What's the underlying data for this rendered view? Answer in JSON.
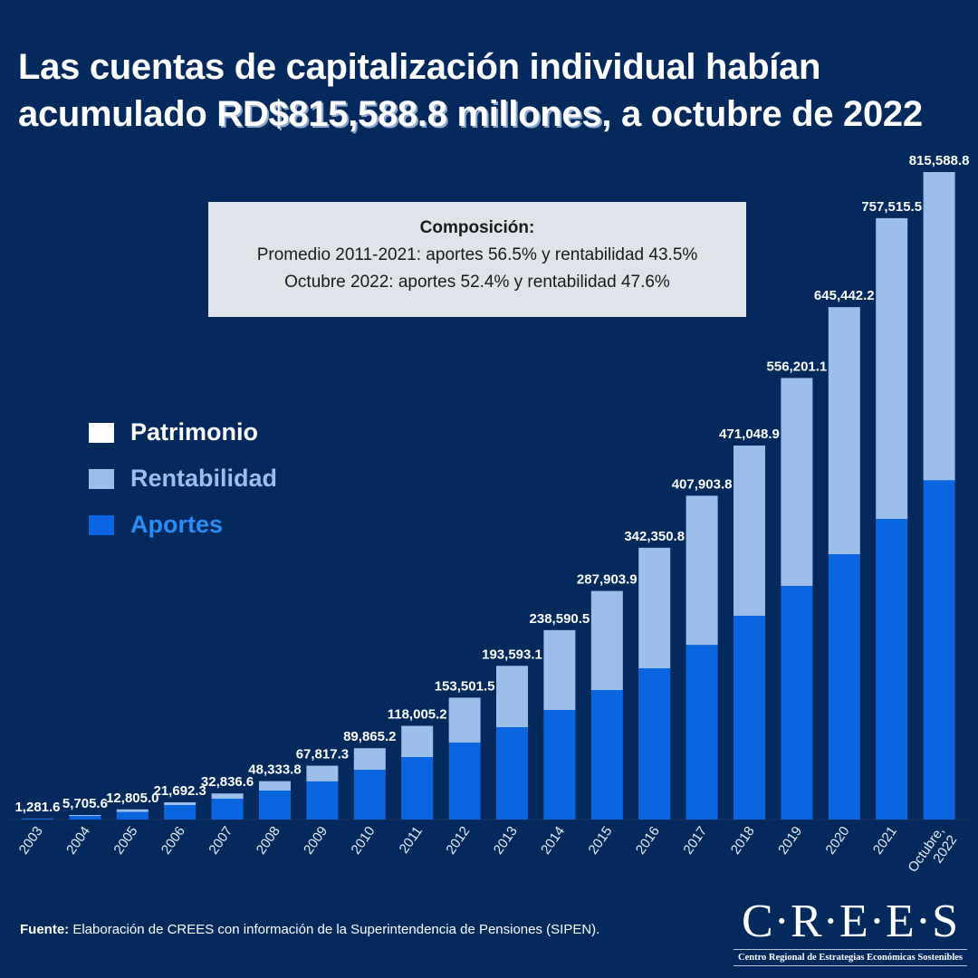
{
  "title": {
    "part1": "Las cuentas de capitalización individual habían acumulado ",
    "highlight": "RD$815,588.8 millones",
    "part2": ", a octubre de 2022"
  },
  "box": {
    "heading": "Composición:",
    "line1": "Promedio 2011-2021: aportes 56.5% y rentabilidad 43.5%",
    "line2": "Octubre 2022: aportes 52.4% y rentabilidad 47.6%"
  },
  "colors": {
    "background": "#03295d",
    "aportes": "#0a66e0",
    "rentabilidad": "#9bbfe9",
    "patrimonio": "#ffffff"
  },
  "source": {
    "label": "Fuente:",
    "text": " Elaboración de CREES con información de la Superintendencia de Pensiones (SIPEN)."
  },
  "logo": {
    "name": "C·R·E·E·S",
    "subtitle": "Centro Regional de Estrategias Económicas Sostenibles"
  },
  "chart_data": {
    "type": "bar",
    "stacked": true,
    "ylim": [
      0,
      815588.8
    ],
    "grid": false,
    "legend_placement": "left",
    "legend": [
      "Patrimonio",
      "Rentabilidad",
      "Aportes"
    ],
    "categories": [
      "2003",
      "2004",
      "2005",
      "2006",
      "2007",
      "2008",
      "2009",
      "2010",
      "2011",
      "2012",
      "2013",
      "2014",
      "2015",
      "2016",
      "2017",
      "2018",
      "2019",
      "2020",
      "2021",
      "Octubre, 2022"
    ],
    "totals": [
      1281.6,
      5705.6,
      12805.0,
      21692.3,
      32836.6,
      48333.8,
      67817.3,
      89865.2,
      118005.2,
      153501.5,
      193593.1,
      238590.5,
      287903.9,
      342350.8,
      407903.8,
      471048.9,
      556201.1,
      645442.2,
      757515.5,
      815588.8
    ],
    "total_labels": [
      "1,281.6",
      "5,705.6",
      "12,805.0",
      "21,692.3",
      "32,836.6",
      "48,333.8",
      "67,817.3",
      "89,865.2",
      "118,005.2",
      "153,501.5",
      "193,593.1",
      "238,590.5",
      "287,903.9",
      "342,350.8",
      "407,903.8",
      "471,048.9",
      "556,201.1",
      "645,442.2",
      "757,515.5",
      "815,588.8"
    ],
    "series": [
      {
        "name": "Aportes",
        "values": [
          1100,
          4500,
          9600,
          18250,
          26200,
          36500,
          48000,
          62700,
          78700,
          97000,
          116300,
          138000,
          163100,
          190500,
          220000,
          256700,
          294300,
          334200,
          378700,
          427368
        ]
      },
      {
        "name": "Rentabilidad",
        "values": [
          181.6,
          1205.6,
          3205.0,
          3442.3,
          6636.6,
          11833.8,
          19817.3,
          27165.2,
          39305.2,
          56501.5,
          77293.1,
          100590.5,
          124803.9,
          151850.8,
          187903.8,
          214348.9,
          261901.1,
          311242.2,
          378815.5,
          388220.8
        ]
      }
    ]
  }
}
